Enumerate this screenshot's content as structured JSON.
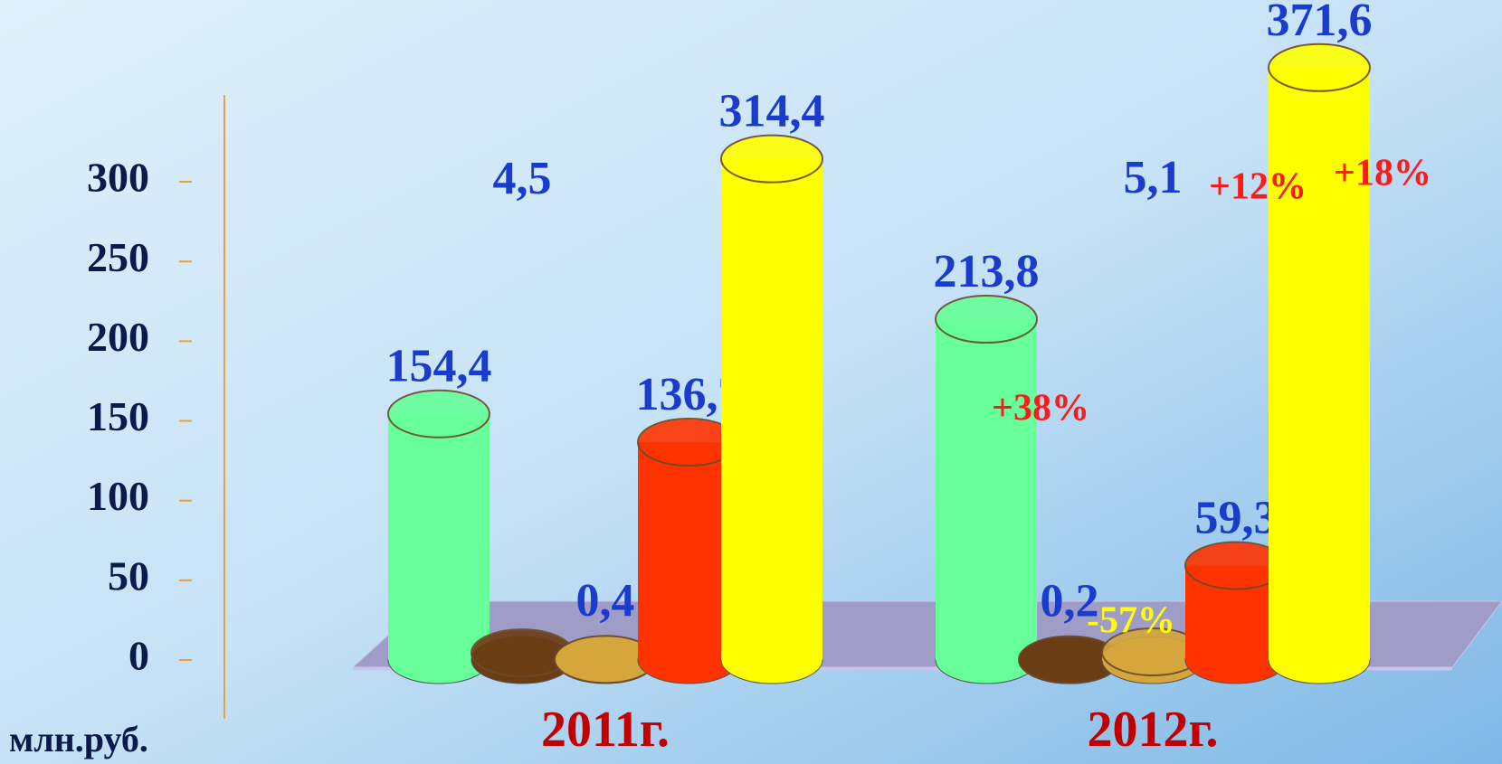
{
  "chart_data": {
    "type": "bar",
    "categories": [
      "2011г.",
      "2012г."
    ],
    "series": [
      {
        "color": "#66ff99",
        "values": [
          154.4,
          213.8
        ],
        "value_labels": [
          "154,4",
          "213,8"
        ]
      },
      {
        "color": "#6b3d14",
        "values": [
          4.5,
          0.2
        ],
        "value_labels": [
          "4,5",
          "0,2"
        ]
      },
      {
        "color": "#d4a63c",
        "values": [
          0.4,
          5.1
        ],
        "value_labels": [
          "0,4",
          "5,1"
        ]
      },
      {
        "color": "#ff3300",
        "values": [
          136.7,
          59.3
        ],
        "value_labels": [
          "136,7",
          "59,3"
        ]
      },
      {
        "color": "#ffff00",
        "values": [
          314.4,
          371.6
        ],
        "value_labels": [
          "314,4",
          "371,6"
        ]
      }
    ],
    "annotations": [
      "+38%",
      "-57%",
      "+12%",
      "+18%"
    ],
    "y_axis_label": "млн.руб.",
    "ylim": [
      0,
      380
    ],
    "yticks": [
      0,
      50,
      100,
      150,
      200,
      250,
      300
    ]
  }
}
